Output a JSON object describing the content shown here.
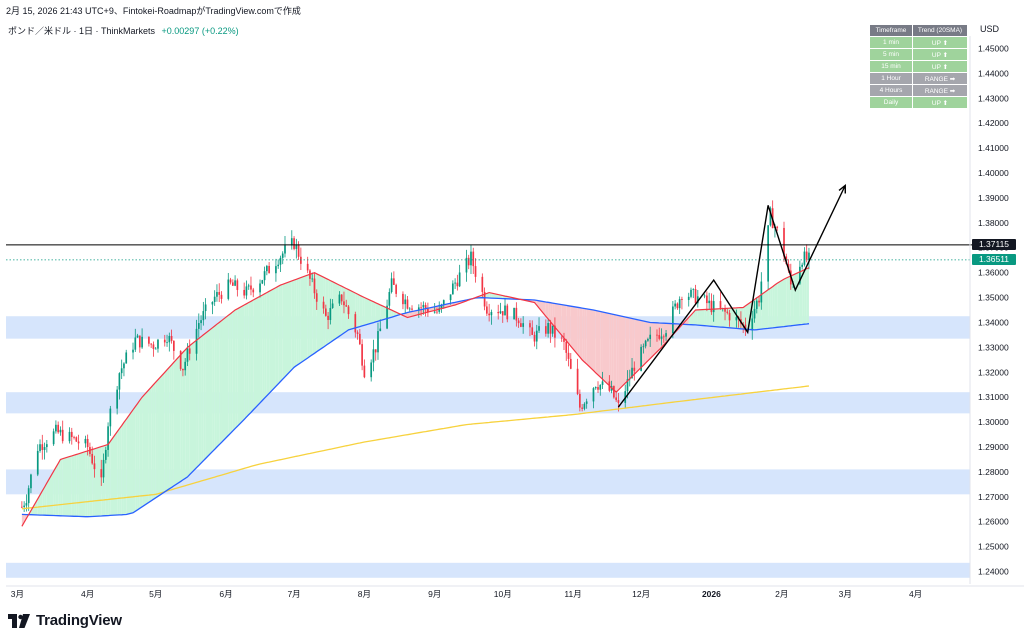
{
  "header": {
    "publish_line": "2月 15, 2026 21:43 UTC+9、Fintokei-RoadmapがTradingView.comで作成",
    "symbol": "ポンド／米ドル · 1日 · ThinkMarkets",
    "change": "+0.00297 (+0.22%)"
  },
  "currency_label": "USD",
  "logo_text": "TradingView",
  "colors": {
    "up_candle": "#089981",
    "down_candle": "#f23645",
    "sma20": "#f23645",
    "sma50": "#2962ff",
    "sma200": "#f7d23e",
    "bull_fill": "#c8f5dc",
    "bear_fill": "#f8c9cc",
    "zone_fill": "#cfe0fb",
    "resistance_line": "#000000"
  },
  "trend_table": {
    "headers": [
      "Timeframe",
      "Trend (20SMA)"
    ],
    "rows": [
      {
        "timeframe": "1 min",
        "trend": "UP ⬆",
        "state": "up"
      },
      {
        "timeframe": "5 min",
        "trend": "UP ⬆",
        "state": "up"
      },
      {
        "timeframe": "15 min",
        "trend": "UP ⬆",
        "state": "up"
      },
      {
        "timeframe": "1 Hour",
        "trend": "RANGE ➡",
        "state": "range"
      },
      {
        "timeframe": "4 Hours",
        "trend": "RANGE ➡",
        "state": "range"
      },
      {
        "timeframe": "Daily",
        "trend": "UP ⬆",
        "state": "up"
      }
    ]
  },
  "price_labels": {
    "resistance": "1.37115",
    "last": "1.36511"
  },
  "chart_data": {
    "type": "candlestick",
    "ylim": [
      1.235,
      1.455
    ],
    "y_ticks": [
      "1.24000",
      "1.25000",
      "1.26000",
      "1.27000",
      "1.28000",
      "1.29000",
      "1.30000",
      "1.31000",
      "1.32000",
      "1.33000",
      "1.34000",
      "1.35000",
      "1.36000",
      "1.37000",
      "1.38000",
      "1.39000",
      "1.40000",
      "1.41000",
      "1.42000",
      "1.43000",
      "1.44000",
      "1.45000"
    ],
    "x_ticks": [
      "3月",
      "4月",
      "5月",
      "6月",
      "7月",
      "8月",
      "9月",
      "10月",
      "11月",
      "12月",
      "2026",
      "2月",
      "3月",
      "4月"
    ],
    "resistance": 1.37115,
    "last_price": 1.36511,
    "zones": [
      {
        "from": 1.3335,
        "to": 1.3425
      },
      {
        "from": 1.3035,
        "to": 1.312
      },
      {
        "from": 1.271,
        "to": 1.281
      },
      {
        "from": 1.2375,
        "to": 1.2435
      }
    ],
    "price_path": [
      [
        "2025-03-01",
        1.262
      ],
      [
        "2025-03-05",
        1.27
      ],
      [
        "2025-03-10",
        1.29
      ],
      [
        "2025-03-18",
        1.296
      ],
      [
        "2025-03-26",
        1.293
      ],
      [
        "2025-04-01",
        1.29
      ],
      [
        "2025-04-07",
        1.275
      ],
      [
        "2025-04-10",
        1.3
      ],
      [
        "2025-04-15",
        1.32
      ],
      [
        "2025-04-22",
        1.333
      ],
      [
        "2025-04-30",
        1.331
      ],
      [
        "2025-05-06",
        1.335
      ],
      [
        "2025-05-13",
        1.322
      ],
      [
        "2025-05-20",
        1.34
      ],
      [
        "2025-05-27",
        1.35
      ],
      [
        "2025-06-03",
        1.355
      ],
      [
        "2025-06-10",
        1.352
      ],
      [
        "2025-06-17",
        1.358
      ],
      [
        "2025-06-24",
        1.366
      ],
      [
        "2025-07-01",
        1.372
      ],
      [
        "2025-07-08",
        1.357
      ],
      [
        "2025-07-15",
        1.342
      ],
      [
        "2025-07-22",
        1.35
      ],
      [
        "2025-07-29",
        1.335
      ],
      [
        "2025-08-01",
        1.321
      ],
      [
        "2025-08-06",
        1.33
      ],
      [
        "2025-08-13",
        1.355
      ],
      [
        "2025-08-20",
        1.348
      ],
      [
        "2025-08-27",
        1.346
      ],
      [
        "2025-09-03",
        1.344
      ],
      [
        "2025-09-10",
        1.356
      ],
      [
        "2025-09-17",
        1.366
      ],
      [
        "2025-09-24",
        1.346
      ],
      [
        "2025-10-01",
        1.345
      ],
      [
        "2025-10-08",
        1.342
      ],
      [
        "2025-10-14",
        1.334
      ],
      [
        "2025-10-21",
        1.338
      ],
      [
        "2025-10-28",
        1.331
      ],
      [
        "2025-11-04",
        1.306
      ],
      [
        "2025-11-11",
        1.316
      ],
      [
        "2025-11-18",
        1.312
      ],
      [
        "2025-11-21",
        1.306
      ],
      [
        "2025-11-28",
        1.323
      ],
      [
        "2025-12-05",
        1.333
      ],
      [
        "2025-12-12",
        1.338
      ],
      [
        "2025-12-19",
        1.352
      ],
      [
        "2025-12-26",
        1.35
      ],
      [
        "2026-01-02",
        1.346
      ],
      [
        "2026-01-09",
        1.343
      ],
      [
        "2026-01-16",
        1.338
      ],
      [
        "2026-01-22",
        1.35
      ],
      [
        "2026-01-27",
        1.383
      ],
      [
        "2026-02-01",
        1.372
      ],
      [
        "2026-02-05",
        1.355
      ],
      [
        "2026-02-10",
        1.366
      ],
      [
        "2026-02-13",
        1.3651
      ]
    ],
    "sma20": [
      [
        "2025-03-01",
        1.255
      ],
      [
        "2025-03-20",
        1.285
      ],
      [
        "2025-04-10",
        1.291
      ],
      [
        "2025-04-25",
        1.31
      ],
      [
        "2025-05-15",
        1.33
      ],
      [
        "2025-06-05",
        1.345
      ],
      [
        "2025-06-25",
        1.355
      ],
      [
        "2025-07-10",
        1.36
      ],
      [
        "2025-08-01",
        1.35
      ],
      [
        "2025-08-20",
        1.342
      ],
      [
        "2025-09-10",
        1.347
      ],
      [
        "2025-09-25",
        1.352
      ],
      [
        "2025-10-15",
        1.348
      ],
      [
        "2025-11-05",
        1.325
      ],
      [
        "2025-11-20",
        1.312
      ],
      [
        "2025-12-10",
        1.33
      ],
      [
        "2025-12-25",
        1.345
      ],
      [
        "2026-01-15",
        1.346
      ],
      [
        "2026-02-01",
        1.357
      ],
      [
        "2026-02-13",
        1.362
      ]
    ],
    "sma50": [
      [
        "2025-03-01",
        1.263
      ],
      [
        "2025-04-01",
        1.262
      ],
      [
        "2025-04-20",
        1.263
      ],
      [
        "2025-05-15",
        1.278
      ],
      [
        "2025-06-10",
        1.302
      ],
      [
        "2025-07-01",
        1.322
      ],
      [
        "2025-07-25",
        1.337
      ],
      [
        "2025-08-20",
        1.344
      ],
      [
        "2025-09-20",
        1.35
      ],
      [
        "2025-10-15",
        1.349
      ],
      [
        "2025-11-10",
        1.345
      ],
      [
        "2025-12-05",
        1.34
      ],
      [
        "2025-12-25",
        1.339
      ],
      [
        "2026-01-20",
        1.337
      ],
      [
        "2026-02-13",
        1.3395
      ]
    ],
    "sma200": [
      [
        "2025-03-01",
        1.265
      ],
      [
        "2025-05-01",
        1.271
      ],
      [
        "2025-06-15",
        1.283
      ],
      [
        "2025-08-01",
        1.292
      ],
      [
        "2025-09-15",
        1.299
      ],
      [
        "2025-11-01",
        1.303
      ],
      [
        "2025-12-15",
        1.308
      ],
      [
        "2026-02-13",
        1.3145
      ]
    ],
    "annotations": [
      {
        "type": "polyline",
        "points": [
          [
            "2025-11-21",
            1.306
          ],
          [
            "2026-01-02",
            1.357
          ],
          [
            "2026-01-17",
            1.336
          ],
          [
            "2026-01-26",
            1.387
          ],
          [
            "2026-02-07",
            1.353
          ],
          [
            "2026-03-01",
            1.395
          ]
        ],
        "arrow": true
      }
    ]
  }
}
